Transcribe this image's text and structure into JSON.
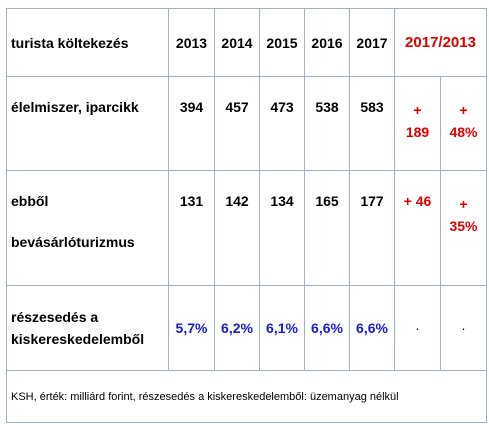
{
  "table": {
    "header": [
      "turista költekezés",
      "2013",
      "2014",
      "2015",
      "2016",
      "2017",
      "2017/2013"
    ],
    "rows": [
      [
        "élelmiszer, iparcikk",
        394,
        457,
        473,
        538,
        583,
        "+ 189",
        "+ 48%"
      ],
      [
        [
          "ebből",
          "bevásárlóturizmus"
        ],
        131,
        142,
        134,
        165,
        177,
        "+ 46",
        "+ 35%"
      ],
      [
        "részesedés a kiskereskedelemből",
        "5,7%",
        "6,2%",
        "6,1%",
        "6,6%",
        "6,6%",
        "·",
        "·"
      ]
    ],
    "footnote": "KSH, érték: milliárd forint, részesedés a kiskereskedelemből: üzemanyag nélkül"
  }
}
